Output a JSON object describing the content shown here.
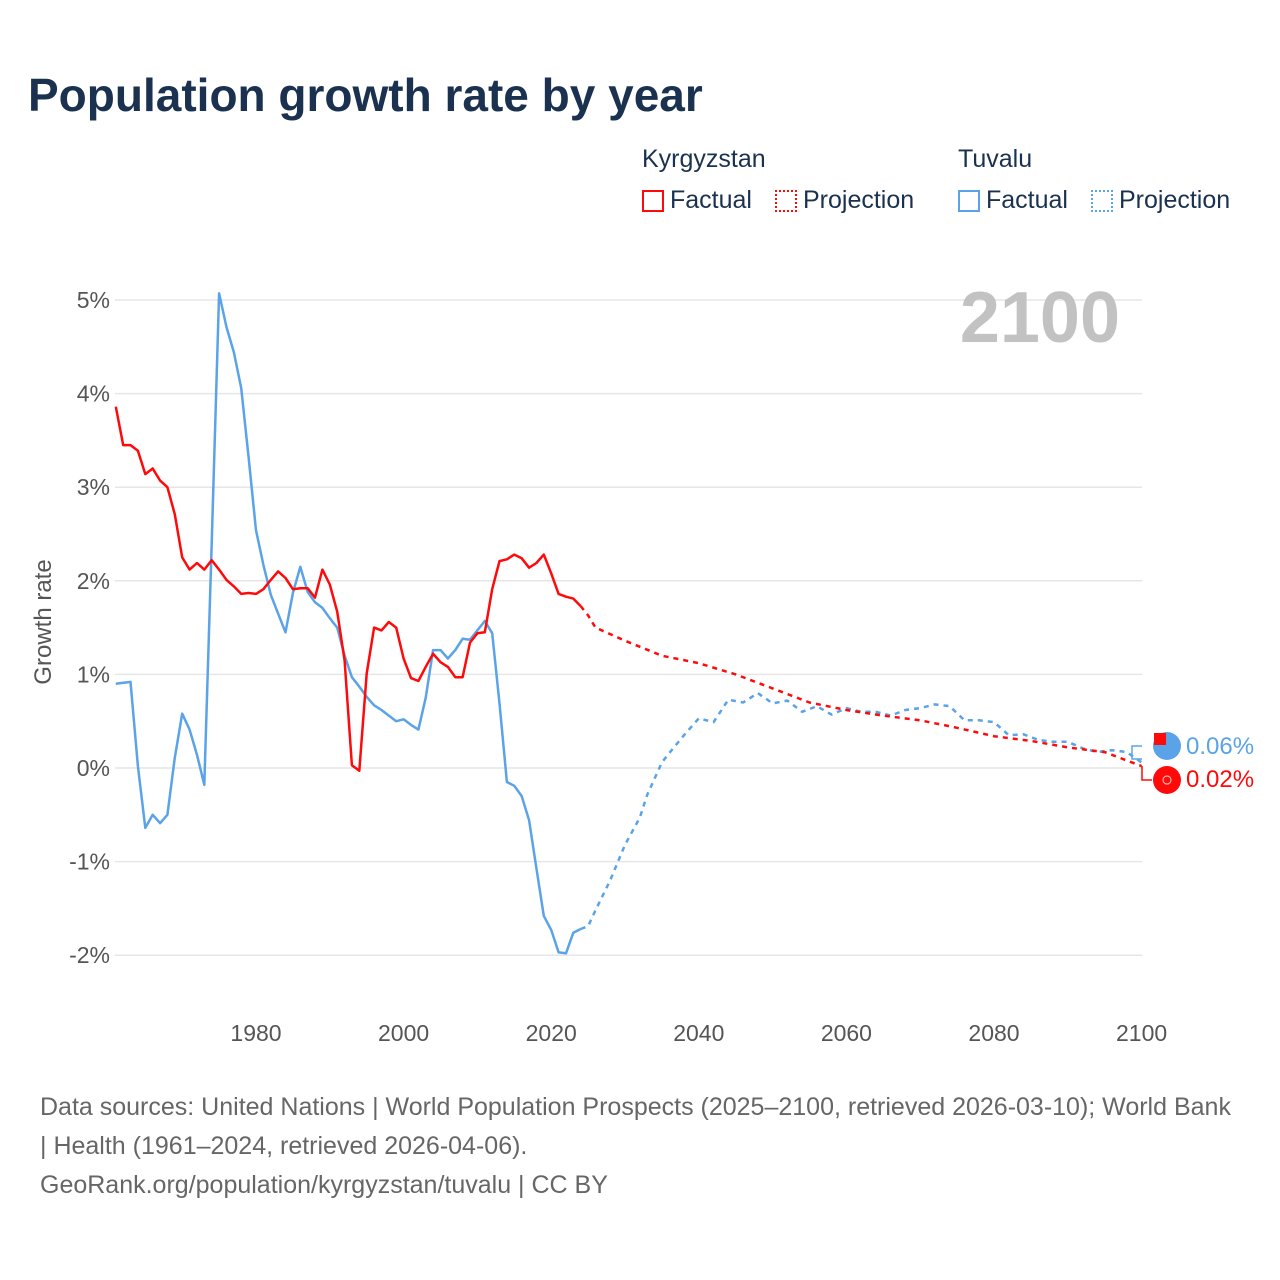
{
  "title": "Population growth rate by year",
  "legend": {
    "countries": [
      {
        "name": "Kyrgyzstan",
        "color": "#ff0a0a",
        "factual": "Factual",
        "projection": "Projection"
      },
      {
        "name": "Tuvalu",
        "color": "#5ba3e8",
        "factual": "Factual",
        "projection": "Projection"
      }
    ]
  },
  "year_label": "2100",
  "end_labels": {
    "tuvalu": "0.06%",
    "kyrgyzstan": "0.02%"
  },
  "source": {
    "line1": "Data sources: United Nations | World Population Prospects (2025–2100, retrieved 2026-03-10); World Bank | Health (1961–2024, retrieved 2026-04-06).",
    "line2": "GeoRank.org/population/kyrgyzstan/tuvalu | CC BY"
  },
  "chart_data": {
    "type": "line",
    "title": "Population growth rate by year",
    "xlabel": "",
    "ylabel": "Growth rate",
    "xlim": [
      1961,
      2100
    ],
    "ylim": [
      -2.2,
      5.2
    ],
    "xticks": [
      1980,
      2000,
      2020,
      2040,
      2060,
      2080,
      2100
    ],
    "yticks": [
      -2,
      -1,
      0,
      1,
      2,
      3,
      4,
      5
    ],
    "ytick_labels": [
      "-2%",
      "-1%",
      "0%",
      "1%",
      "2%",
      "3%",
      "4%",
      "5%"
    ],
    "grid": true,
    "legend_position": "top-right",
    "series": [
      {
        "name": "Tuvalu",
        "kind": "Factual",
        "color": "#5ba3e8",
        "dashed": false,
        "start_year": 1961,
        "values": [
          0.9,
          0.91,
          0.92,
          0.02,
          -0.64,
          -0.5,
          -0.59,
          -0.5,
          0.11,
          0.58,
          0.41,
          0.14,
          -0.18,
          2.4,
          5.07,
          4.71,
          4.44,
          4.06,
          3.32,
          2.54,
          2.17,
          1.85,
          1.65,
          1.45,
          1.87,
          2.15,
          1.88,
          1.77,
          1.71,
          1.6,
          1.5,
          1.2,
          0.97,
          0.87,
          0.76,
          0.67,
          0.62,
          0.56,
          0.5,
          0.52,
          0.46,
          0.41,
          0.75,
          1.26,
          1.26,
          1.17,
          1.26,
          1.38,
          1.37,
          1.47,
          1.57,
          1.44,
          0.69,
          -0.15,
          -0.19,
          -0.3,
          -0.56,
          -1.07,
          -1.58,
          -1.73,
          -1.97,
          -1.98,
          -1.76,
          -1.72
        ]
      },
      {
        "name": "Tuvalu",
        "kind": "Projection",
        "color": "#5ba3e8",
        "dashed": true,
        "x": [
          2024,
          2025,
          2026,
          2028,
          2030,
          2032,
          2033,
          2035,
          2036,
          2038,
          2040,
          2042,
          2044,
          2046,
          2048,
          2050,
          2052,
          2054,
          2056,
          2058,
          2060,
          2062,
          2064,
          2066,
          2068,
          2070,
          2072,
          2074,
          2076,
          2078,
          2080,
          2082,
          2084,
          2086,
          2088,
          2090,
          2092,
          2094,
          2096,
          2098,
          2100
        ],
        "y": [
          -1.72,
          -1.69,
          -1.52,
          -1.2,
          -0.82,
          -0.53,
          -0.29,
          0.06,
          0.16,
          0.35,
          0.53,
          0.49,
          0.73,
          0.7,
          0.8,
          0.69,
          0.72,
          0.6,
          0.66,
          0.57,
          0.64,
          0.6,
          0.6,
          0.56,
          0.62,
          0.64,
          0.68,
          0.66,
          0.51,
          0.51,
          0.49,
          0.35,
          0.36,
          0.3,
          0.28,
          0.28,
          0.21,
          0.17,
          0.19,
          0.17,
          0.06
        ]
      },
      {
        "name": "Kyrgyzstan",
        "kind": "Factual",
        "color": "#ff0a0a",
        "dashed": false,
        "start_year": 1961,
        "values": [
          3.86,
          3.45,
          3.45,
          3.39,
          3.14,
          3.2,
          3.07,
          3.0,
          2.71,
          2.25,
          2.12,
          2.19,
          2.12,
          2.22,
          2.12,
          2.01,
          1.94,
          1.86,
          1.87,
          1.86,
          1.91,
          2.01,
          2.1,
          2.03,
          1.91,
          1.92,
          1.92,
          1.82,
          2.12,
          1.96,
          1.67,
          1.15,
          0.03,
          -0.03,
          1.01,
          1.5,
          1.47,
          1.56,
          1.5,
          1.17,
          0.96,
          0.93,
          1.08,
          1.22,
          1.13,
          1.08,
          0.97,
          0.97,
          1.34,
          1.44,
          1.45,
          1.91,
          2.21,
          2.23,
          2.28,
          2.24,
          2.14,
          2.19,
          2.28,
          2.08,
          1.86,
          1.83,
          1.81,
          1.73
        ]
      },
      {
        "name": "Kyrgyzstan",
        "kind": "Projection",
        "color": "#ff0a0a",
        "dashed": true,
        "x": [
          2024,
          2025,
          2026,
          2030,
          2035,
          2040,
          2045,
          2050,
          2055,
          2060,
          2065,
          2070,
          2075,
          2080,
          2085,
          2090,
          2095,
          2100
        ],
        "y": [
          1.73,
          1.63,
          1.5,
          1.36,
          1.2,
          1.12,
          1.0,
          0.85,
          0.7,
          0.62,
          0.56,
          0.51,
          0.43,
          0.34,
          0.29,
          0.22,
          0.17,
          0.02
        ]
      }
    ]
  }
}
